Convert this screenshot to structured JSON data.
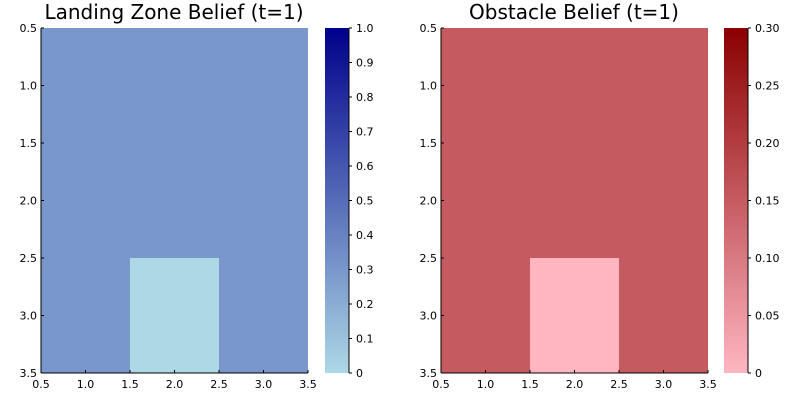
{
  "chart_data": [
    {
      "type": "heatmap",
      "title": "Landing Zone Belief (t=1)",
      "xlabel": "",
      "ylabel": "",
      "xlim": [
        0.5,
        3.5
      ],
      "ylim": [
        0.5,
        3.5
      ],
      "y_reversed": true,
      "x_ticks": [
        "0.5",
        "1.0",
        "1.5",
        "2.0",
        "2.5",
        "3.0",
        "3.5"
      ],
      "y_ticks": [
        "0.5",
        "1.0",
        "1.5",
        "2.0",
        "2.5",
        "3.0",
        "3.5"
      ],
      "grid": false,
      "colorbar": {
        "range": [
          0,
          1
        ],
        "ticks": [
          "0",
          "0.1",
          "0.2",
          "0.3",
          "0.4",
          "0.5",
          "0.6",
          "0.7",
          "0.8",
          "0.9",
          "1.0"
        ],
        "colors": [
          "#add8e6",
          "#00008b"
        ]
      },
      "matrix": [
        [
          0.3,
          0.3,
          0.3
        ],
        [
          0.3,
          0.3,
          0.3
        ],
        [
          0.3,
          0.0,
          0.3
        ]
      ]
    },
    {
      "type": "heatmap",
      "title": "Obstacle Belief (t=1)",
      "xlabel": "",
      "ylabel": "",
      "xlim": [
        0.5,
        3.5
      ],
      "ylim": [
        0.5,
        3.5
      ],
      "y_reversed": true,
      "x_ticks": [
        "0.5",
        "1.0",
        "1.5",
        "2.0",
        "2.5",
        "3.0",
        "3.5"
      ],
      "y_ticks": [
        "0.5",
        "1.0",
        "1.5",
        "2.0",
        "2.5",
        "3.0",
        "3.5"
      ],
      "grid": false,
      "colorbar": {
        "range": [
          0,
          0.3
        ],
        "ticks": [
          "0",
          "0.05",
          "0.10",
          "0.15",
          "0.20",
          "0.25",
          "0.30"
        ],
        "colors": [
          "#ffb6c1",
          "#8b0000"
        ]
      },
      "matrix": [
        [
          0.15,
          0.15,
          0.15
        ],
        [
          0.15,
          0.15,
          0.15
        ],
        [
          0.15,
          0.0,
          0.15
        ]
      ]
    }
  ]
}
